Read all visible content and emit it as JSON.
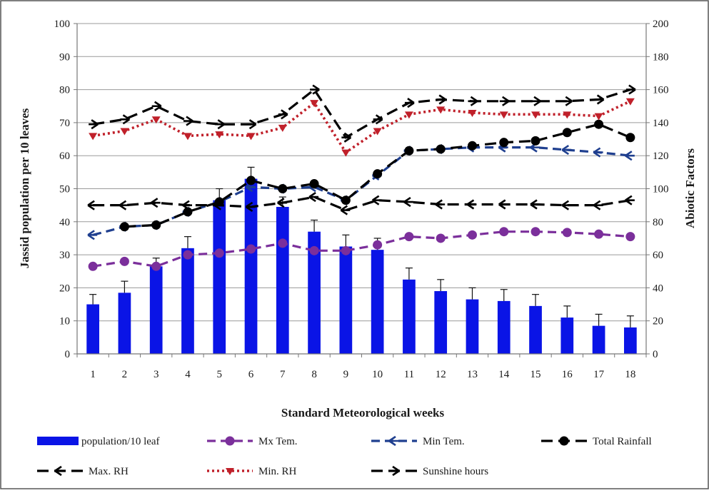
{
  "chart_data": {
    "type": "bar",
    "xlabel": "Standard Meteorological weeks",
    "ylabel_left": "Jassid population per 10 leaves",
    "ylabel_right": "Abiotic Factors",
    "ylim_left": [
      0,
      100
    ],
    "ylim_right": [
      0,
      200
    ],
    "yticks_left": [
      "0",
      "10",
      "20",
      "30",
      "40",
      "50",
      "60",
      "70",
      "80",
      "90",
      "100"
    ],
    "yticks_right": [
      "0",
      "20",
      "40",
      "60",
      "80",
      "100",
      "120",
      "140",
      "160",
      "180",
      "200"
    ],
    "categories": [
      "1",
      "2",
      "3",
      "4",
      "5",
      "6",
      "7",
      "8",
      "9",
      "10",
      "11",
      "12",
      "13",
      "14",
      "15",
      "16",
      "17",
      "18"
    ],
    "grid": "horizontal",
    "legend_position": "bottom",
    "series": [
      {
        "name": "population/10 leaf",
        "type": "bar",
        "axis": "left",
        "color": "#0a14e6",
        "values": [
          15,
          18.5,
          26.5,
          32,
          46.5,
          53,
          44.5,
          37,
          32.5,
          31.5,
          22.5,
          19,
          16.5,
          16,
          14.5,
          11,
          8.5,
          8
        ],
        "errors": [
          3,
          3.5,
          2.5,
          3.5,
          3.5,
          3.5,
          3,
          3.5,
          3.5,
          3.5,
          3.5,
          3.5,
          3.5,
          3.5,
          3.5,
          3.5,
          3.5,
          3.5
        ]
      },
      {
        "name": "Mx Tem.",
        "type": "line",
        "axis": "right",
        "color": "#7b2f9b",
        "style": "dashed",
        "marker": "circle",
        "values": [
          53,
          56,
          53,
          60,
          61,
          63.5,
          67,
          62.5,
          62.5,
          66,
          71,
          70,
          72,
          74,
          74,
          73.5,
          72.5,
          71
        ]
      },
      {
        "name": "Min Tem.",
        "type": "line",
        "axis": "right",
        "color": "#1f3f8f",
        "style": "dashed",
        "marker": "arrow-left",
        "values": [
          72,
          77,
          78,
          86,
          92,
          101,
          100,
          101,
          93,
          108,
          123,
          124,
          125,
          125,
          125,
          123.5,
          122,
          120
        ]
      },
      {
        "name": "Total Rainfall",
        "type": "line",
        "axis": "right",
        "color": "#000000",
        "style": "long-dash",
        "marker": "circle",
        "values": [
          null,
          77,
          78,
          86,
          92,
          105,
          100,
          103,
          93,
          109,
          123,
          124,
          126,
          128,
          129,
          134,
          139,
          131
        ]
      },
      {
        "name": "Max. RH",
        "type": "line",
        "axis": "right",
        "color": "#000000",
        "style": "long-dash",
        "marker": "arrow-left",
        "values": [
          90,
          90,
          91.5,
          90,
          90,
          89,
          91.5,
          95,
          87,
          93,
          92,
          90.5,
          90.5,
          90.5,
          90.5,
          90,
          90,
          93
        ]
      },
      {
        "name": "Min. RH",
        "type": "line",
        "axis": "right",
        "color": "#c0202a",
        "style": "dotted",
        "marker": "triangle",
        "values": [
          132,
          135,
          142,
          132,
          133,
          132,
          137,
          152,
          122,
          135,
          145,
          148,
          146,
          145,
          145,
          145,
          144,
          153
        ]
      },
      {
        "name": "Sunshine hours",
        "type": "line",
        "axis": "right",
        "color": "#000000",
        "style": "long-dash",
        "marker": "arrow-right",
        "values": [
          139,
          142,
          150,
          141,
          139,
          139,
          145,
          160,
          131,
          142,
          152,
          154,
          153,
          153,
          153,
          153,
          154,
          160
        ]
      }
    ],
    "legend": [
      {
        "label": "population/10 leaf",
        "series": 0
      },
      {
        "label": "Mx Tem.",
        "series": 1
      },
      {
        "label": "Min Tem.",
        "series": 2
      },
      {
        "label": "Total Rainfall",
        "series": 3
      },
      {
        "label": "Max. RH",
        "series": 4
      },
      {
        "label": "Min. RH",
        "series": 5
      },
      {
        "label": "Sunshine hours",
        "series": 6
      }
    ]
  }
}
